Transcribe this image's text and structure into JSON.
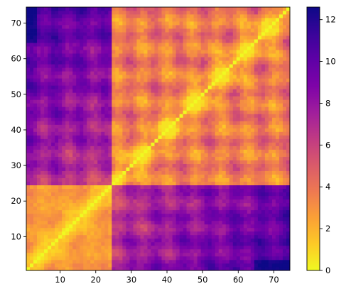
{
  "chart_data": {
    "type": "heatmap",
    "title": "",
    "xlabel": "",
    "ylabel": "",
    "n": 74,
    "xlim": [
      1,
      74
    ],
    "ylim": [
      1,
      74
    ],
    "x_ticks": [
      10,
      20,
      30,
      40,
      50,
      60,
      70
    ],
    "y_ticks": [
      10,
      20,
      30,
      40,
      50,
      60,
      70
    ],
    "x_tick_labels": [
      "10",
      "20",
      "30",
      "40",
      "50",
      "60",
      "70"
    ],
    "y_tick_labels": [
      "10",
      "20",
      "30",
      "40",
      "50",
      "60",
      "70"
    ],
    "diagonal_value": 0,
    "value_range": [
      0,
      12.6
    ],
    "colormap": "plasma_r",
    "colorbar": {
      "ticks": [
        0,
        2,
        4,
        6,
        8,
        10,
        12
      ],
      "labels": [
        "0",
        "2",
        "4",
        "6",
        "8",
        "10",
        "12"
      ]
    },
    "block_description": [
      {
        "rows": "1-24",
        "cols": "1-24",
        "mean_value": 1.8
      },
      {
        "rows": "25-74",
        "cols": "25-74",
        "mean_value": 3.0
      },
      {
        "rows": "1-24",
        "cols": "25-74",
        "mean_value": 8.5
      },
      {
        "rows": "25-74",
        "cols": "1-24",
        "mean_value": 8.5
      }
    ],
    "grid": false
  }
}
